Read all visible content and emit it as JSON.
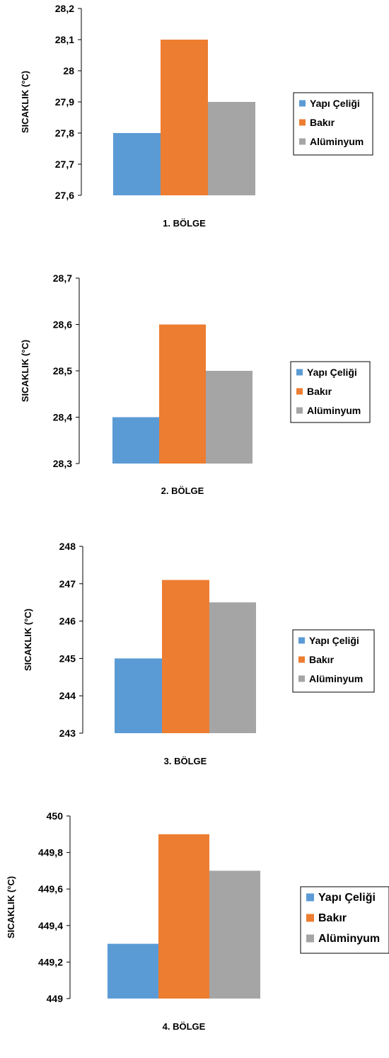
{
  "colors": {
    "yapi": "#5b9bd5",
    "bakir": "#ed7d31",
    "alu": "#a5a5a5"
  },
  "chart_data": [
    {
      "type": "bar",
      "categories": [
        "1. BÖLGE"
      ],
      "xlabel": "1. BÖLGE",
      "ylabel": "SICAKLIK (°C)",
      "ylim": [
        27.6,
        28.2
      ],
      "yticks": [
        "27,6",
        "27,7",
        "27,8",
        "27,9",
        "28",
        "28,1",
        "28,2"
      ],
      "legend_position": "right",
      "grid": false,
      "series": [
        {
          "name": "Yapı Çeliği",
          "values": [
            27.8
          ]
        },
        {
          "name": "Bakır",
          "values": [
            28.1
          ]
        },
        {
          "name": "Alüminyum",
          "values": [
            27.9
          ]
        }
      ]
    },
    {
      "type": "bar",
      "categories": [
        "2. BÖLGE"
      ],
      "xlabel": "2. BÖLGE",
      "ylabel": "SICAKLIK (°C)",
      "ylim": [
        28.3,
        28.7
      ],
      "yticks": [
        "28,3",
        "28,4",
        "28,5",
        "28,6",
        "28,7"
      ],
      "legend_position": "right",
      "grid": false,
      "series": [
        {
          "name": "Yapı Çeliği",
          "values": [
            28.4
          ]
        },
        {
          "name": "Bakır",
          "values": [
            28.6
          ]
        },
        {
          "name": "Alüminyum",
          "values": [
            28.5
          ]
        }
      ]
    },
    {
      "type": "bar",
      "categories": [
        "3. BÖLGE"
      ],
      "xlabel": "3. BÖLGE",
      "ylabel": "SICAKLIK (°C)",
      "ylim": [
        243,
        248
      ],
      "yticks": [
        "243",
        "244",
        "245",
        "246",
        "247",
        "248"
      ],
      "legend_position": "right",
      "grid": false,
      "series": [
        {
          "name": "Yapı Çeliği",
          "values": [
            245
          ]
        },
        {
          "name": "Bakır",
          "values": [
            247.1
          ]
        },
        {
          "name": "Alüminyum",
          "values": [
            246.5
          ]
        }
      ]
    },
    {
      "type": "bar",
      "categories": [
        "4. BÖLGE"
      ],
      "xlabel": "4. BÖLGE",
      "ylabel": "SICAKLIK (°C)",
      "ylim": [
        449,
        450
      ],
      "yticks": [
        "449",
        "449,2",
        "449,4",
        "449,6",
        "449,8",
        "450"
      ],
      "legend_position": "right",
      "grid": false,
      "series": [
        {
          "name": "Yapı Çeliği",
          "values": [
            449.3
          ]
        },
        {
          "name": "Bakır",
          "values": [
            449.9
          ]
        },
        {
          "name": "Alüminyum",
          "values": [
            449.7
          ]
        }
      ]
    }
  ]
}
